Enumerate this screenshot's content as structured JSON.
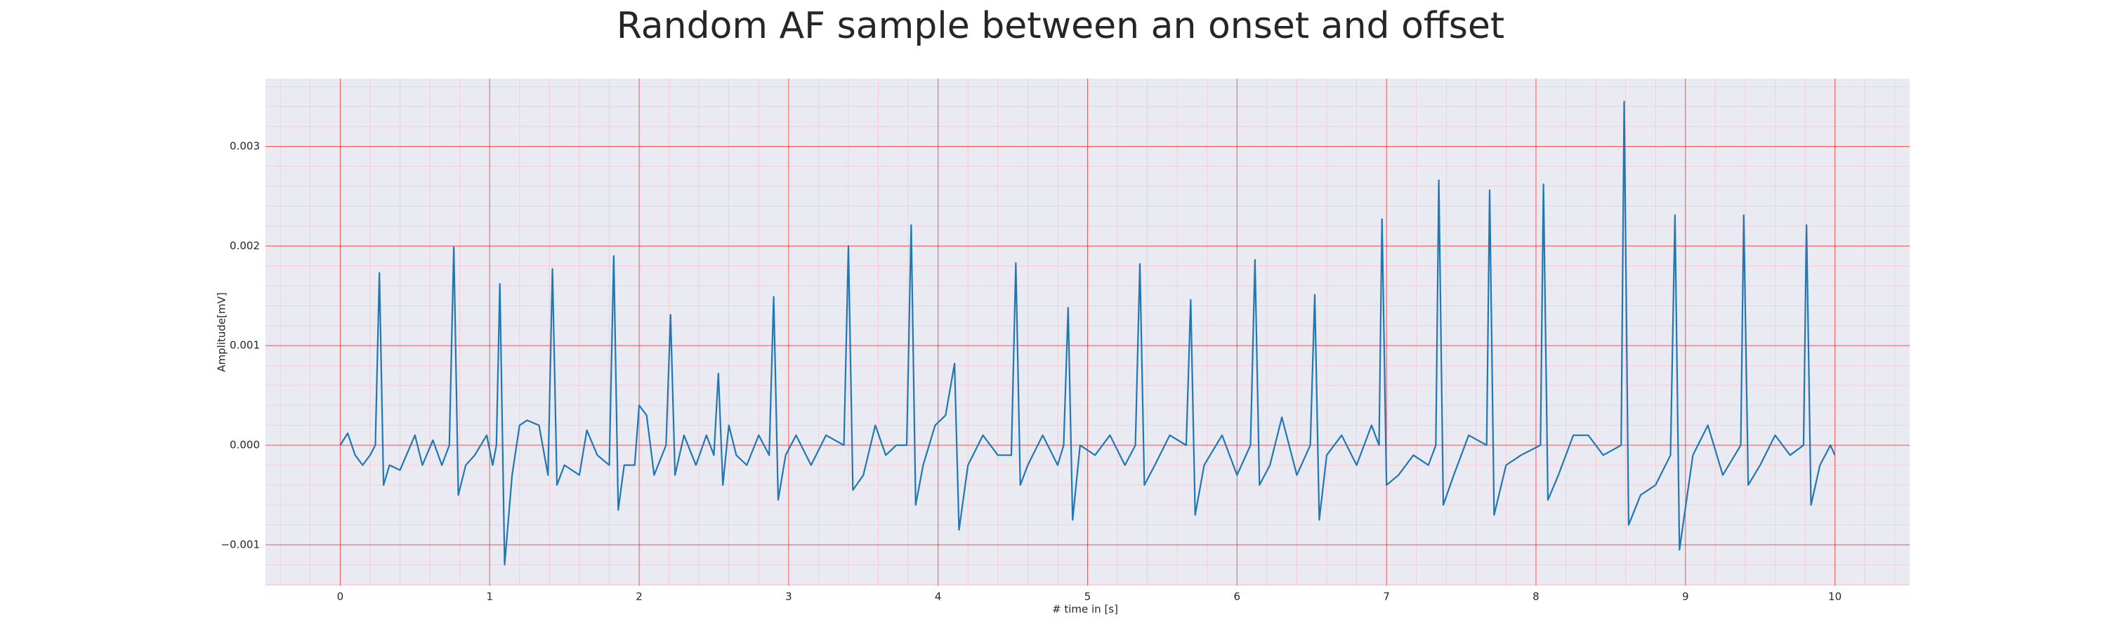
{
  "chart_data": {
    "type": "line",
    "title": "Random AF sample between an onset and offset",
    "xlabel": "# time in [s]",
    "ylabel": "Amplitude[mV]",
    "xlim": [
      -0.5,
      10.5
    ],
    "ylim": [
      -0.00141,
      0.00368
    ],
    "xticks": [
      0,
      1,
      2,
      3,
      4,
      5,
      6,
      7,
      8,
      9,
      10
    ],
    "yticks": [
      {
        "value": -0.001,
        "label": "−0.001"
      },
      {
        "value": 0,
        "label": "0.000"
      },
      0.001,
      0.002,
      0.003
    ],
    "grid": true,
    "minor_grid": true,
    "grid_color": "#ff0000",
    "minor_grid_color": "#ffb6c1",
    "background": "#eaeaf2",
    "series": [
      {
        "color": "#1f77b4",
        "x": [
          0,
          0.05,
          0.1,
          0.15,
          0.2,
          0.235,
          0.262,
          0.29,
          0.33,
          0.4,
          0.5,
          0.55,
          0.62,
          0.68,
          0.73,
          0.76,
          0.79,
          0.84,
          0.9,
          0.98,
          1.02,
          1.045,
          1.068,
          1.1,
          1.15,
          1.2,
          1.25,
          1.33,
          1.39,
          1.42,
          1.45,
          1.5,
          1.6,
          1.65,
          1.72,
          1.8,
          1.83,
          1.86,
          1.9,
          1.97,
          2.0,
          2.05,
          2.1,
          2.18,
          2.21,
          2.24,
          2.3,
          2.38,
          2.45,
          2.5,
          2.53,
          2.56,
          2.6,
          2.65,
          2.72,
          2.8,
          2.87,
          2.9,
          2.93,
          2.98,
          3.05,
          3.15,
          3.25,
          3.37,
          3.4,
          3.43,
          3.5,
          3.58,
          3.65,
          3.72,
          3.79,
          3.82,
          3.85,
          3.9,
          3.98,
          4.05,
          4.11,
          4.14,
          4.2,
          4.3,
          4.4,
          4.49,
          4.52,
          4.55,
          4.6,
          4.7,
          4.8,
          4.84,
          4.87,
          4.9,
          4.95,
          5.05,
          5.15,
          5.25,
          5.32,
          5.35,
          5.38,
          5.45,
          5.55,
          5.66,
          5.69,
          5.72,
          5.78,
          5.9,
          6.0,
          6.09,
          6.12,
          6.15,
          6.22,
          6.3,
          6.4,
          6.49,
          6.52,
          6.55,
          6.6,
          6.7,
          6.8,
          6.9,
          6.95,
          6.97,
          7.0,
          7.08,
          7.18,
          7.28,
          7.33,
          7.35,
          7.38,
          7.45,
          7.55,
          7.67,
          7.69,
          7.72,
          7.8,
          7.9,
          8.03,
          8.05,
          8.08,
          8.15,
          8.25,
          8.35,
          8.45,
          8.57,
          8.59,
          8.62,
          8.7,
          8.8,
          8.9,
          8.93,
          8.96,
          9.05,
          9.15,
          9.25,
          9.37,
          9.39,
          9.42,
          9.5,
          9.6,
          9.7,
          9.79,
          9.81,
          9.84,
          9.9,
          9.97,
          10.0
        ],
        "values": [
          0,
          0.00012,
          -0.0001,
          -0.0002,
          -0.0001,
          0,
          0.00173,
          -0.0004,
          -0.0002,
          -0.00025,
          0.0001,
          -0.0002,
          5e-05,
          -0.0002,
          0,
          0.00199,
          -0.0005,
          -0.0002,
          -0.0001,
          0.0001,
          -0.0002,
          0,
          0.00162,
          -0.0012,
          -0.0003,
          0.0002,
          0.00025,
          0.0002,
          -0.0003,
          0.00177,
          -0.0004,
          -0.0002,
          -0.0003,
          0.00015,
          -0.0001,
          -0.0002,
          0.0019,
          -0.00065,
          -0.0002,
          -0.0002,
          0.0004,
          0.0003,
          -0.0003,
          0,
          0.00131,
          -0.0003,
          0.0001,
          -0.0002,
          0.0001,
          -0.0001,
          0.00072,
          -0.0004,
          0.0002,
          -0.0001,
          -0.0002,
          0.0001,
          -0.0001,
          0.00149,
          -0.00055,
          -0.0001,
          0.0001,
          -0.0002,
          0.0001,
          0,
          0.002,
          -0.00045,
          -0.0003,
          0.0002,
          -0.0001,
          0,
          0,
          0.00221,
          -0.0006,
          -0.0002,
          0.0002,
          0.0003,
          0.00082,
          -0.00085,
          -0.0002,
          0.0001,
          -0.0001,
          -0.0001,
          0.00183,
          -0.0004,
          -0.0002,
          0.0001,
          -0.0002,
          0,
          0.00138,
          -0.00075,
          0,
          -0.0001,
          0.0001,
          -0.0002,
          0,
          0.00182,
          -0.0004,
          -0.0002,
          0.0001,
          0,
          0.00146,
          -0.0007,
          -0.0002,
          0.0001,
          -0.0003,
          0,
          0.00186,
          -0.0004,
          -0.0002,
          0.00028,
          -0.0003,
          0,
          0.00151,
          -0.00075,
          -0.0001,
          0.0001,
          -0.0002,
          0.0002,
          0,
          0.00227,
          -0.0004,
          -0.0003,
          -0.0001,
          -0.0002,
          0,
          0.00266,
          -0.0006,
          -0.0003,
          0.0001,
          0,
          0.00256,
          -0.0007,
          -0.0002,
          -0.0001,
          0,
          0.00262,
          -0.00055,
          -0.0003,
          0.0001,
          0.0001,
          -0.0001,
          0,
          0.00345,
          -0.0008,
          -0.0005,
          -0.0004,
          -0.0001,
          0.00231,
          -0.00105,
          -0.0001,
          0.0002,
          -0.0003,
          0,
          0.00231,
          -0.0004,
          -0.0002,
          0.0001,
          -0.0001,
          0,
          0.00221,
          -0.0006,
          -0.0002,
          0,
          -0.0001
        ]
      }
    ]
  }
}
